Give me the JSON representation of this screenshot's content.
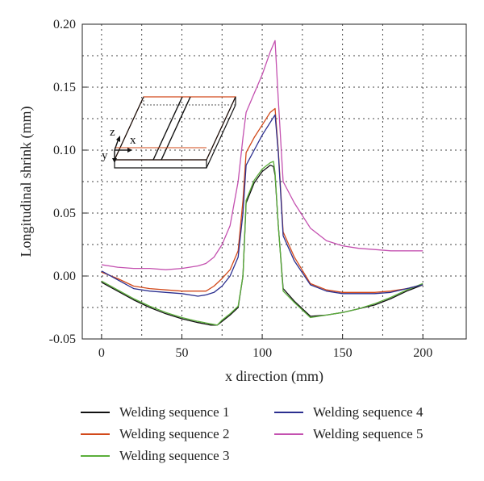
{
  "chart_data": {
    "type": "line",
    "title": "",
    "xlabel": "x direction (mm)",
    "ylabel": "Longitudinal shrink (mm)",
    "xlim": [
      -12,
      227
    ],
    "ylim": [
      -0.05,
      0.2
    ],
    "xticks": [
      0,
      50,
      100,
      150,
      200
    ],
    "yticks": [
      -0.05,
      0.0,
      0.05,
      0.1,
      0.15,
      0.2
    ],
    "xtick_labels": [
      "0",
      "50",
      "100",
      "150",
      "200"
    ],
    "ytick_labels": [
      "-0.05",
      "0.00",
      "0.05",
      "0.10",
      "0.15",
      "0.20"
    ],
    "grid": true,
    "legend_position": "bottom",
    "inset_labels": {
      "z": "z",
      "x": "x",
      "y": "y"
    },
    "series": [
      {
        "name": "Welding sequence 1",
        "color": "#111111",
        "x": [
          0,
          10,
          20,
          30,
          40,
          50,
          60,
          68,
          72,
          75,
          80,
          85,
          88,
          90,
          95,
          100,
          105,
          107,
          108,
          110,
          113,
          120,
          130,
          140,
          150,
          160,
          170,
          180,
          190,
          200
        ],
        "y": [
          -0.005,
          -0.012,
          -0.019,
          -0.025,
          -0.03,
          -0.034,
          -0.037,
          -0.039,
          -0.039,
          -0.036,
          -0.031,
          -0.025,
          0.0,
          0.058,
          0.074,
          0.083,
          0.088,
          0.087,
          0.08,
          0.04,
          -0.01,
          -0.02,
          -0.032,
          -0.031,
          -0.029,
          -0.026,
          -0.023,
          -0.018,
          -0.012,
          -0.007
        ]
      },
      {
        "name": "Welding sequence 2",
        "color": "#d2491a",
        "x": [
          0,
          10,
          20,
          30,
          40,
          50,
          60,
          65,
          70,
          75,
          80,
          85,
          88,
          90,
          95,
          100,
          105,
          108,
          110,
          113,
          120,
          130,
          140,
          150,
          160,
          170,
          180,
          190,
          200
        ],
        "y": [
          0.003,
          -0.002,
          -0.008,
          -0.01,
          -0.011,
          -0.012,
          -0.012,
          -0.012,
          -0.008,
          -0.002,
          0.005,
          0.02,
          0.06,
          0.098,
          0.11,
          0.12,
          0.13,
          0.133,
          0.1,
          0.035,
          0.015,
          -0.006,
          -0.011,
          -0.013,
          -0.013,
          -0.013,
          -0.012,
          -0.01,
          -0.007
        ]
      },
      {
        "name": "Welding sequence 3",
        "color": "#5aae3a",
        "x": [
          0,
          10,
          20,
          30,
          40,
          50,
          60,
          68,
          72,
          75,
          80,
          85,
          88,
          90,
          95,
          100,
          105,
          107,
          108,
          110,
          113,
          120,
          130,
          140,
          150,
          160,
          170,
          180,
          190,
          200
        ],
        "y": [
          -0.004,
          -0.011,
          -0.018,
          -0.024,
          -0.029,
          -0.033,
          -0.036,
          -0.038,
          -0.039,
          -0.035,
          -0.03,
          -0.024,
          0.0,
          0.06,
          0.076,
          0.085,
          0.09,
          0.091,
          0.082,
          0.04,
          -0.012,
          -0.021,
          -0.033,
          -0.031,
          -0.029,
          -0.026,
          -0.022,
          -0.017,
          -0.011,
          -0.006
        ]
      },
      {
        "name": "Welding sequence 4",
        "color": "#2b2f8f",
        "x": [
          0,
          10,
          20,
          30,
          40,
          50,
          60,
          65,
          70,
          75,
          80,
          85,
          88,
          90,
          95,
          100,
          105,
          108,
          110,
          113,
          120,
          130,
          140,
          150,
          160,
          170,
          180,
          190,
          200
        ],
        "y": [
          0.004,
          -0.003,
          -0.01,
          -0.012,
          -0.013,
          -0.014,
          -0.016,
          -0.015,
          -0.013,
          -0.008,
          0.0,
          0.015,
          0.05,
          0.088,
          0.1,
          0.112,
          0.122,
          0.128,
          0.098,
          0.032,
          0.012,
          -0.007,
          -0.012,
          -0.014,
          -0.014,
          -0.014,
          -0.013,
          -0.01,
          -0.007
        ]
      },
      {
        "name": "Welding sequence 5",
        "color": "#c451b0",
        "x": [
          0,
          10,
          20,
          30,
          40,
          50,
          60,
          65,
          70,
          75,
          80,
          85,
          88,
          90,
          95,
          100,
          105,
          108,
          110,
          113,
          120,
          130,
          140,
          150,
          160,
          170,
          180,
          190,
          200
        ],
        "y": [
          0.009,
          0.007,
          0.006,
          0.006,
          0.005,
          0.006,
          0.008,
          0.01,
          0.015,
          0.025,
          0.04,
          0.075,
          0.11,
          0.13,
          0.145,
          0.16,
          0.178,
          0.187,
          0.14,
          0.075,
          0.058,
          0.038,
          0.028,
          0.024,
          0.022,
          0.021,
          0.02,
          0.02,
          0.02
        ]
      }
    ]
  },
  "legend": {
    "items": [
      {
        "label": "Welding sequence 1",
        "color": "#111111"
      },
      {
        "label": "Welding sequence 2",
        "color": "#d2491a"
      },
      {
        "label": "Welding sequence 3",
        "color": "#5aae3a"
      },
      {
        "label": "Welding sequence 4",
        "color": "#2b2f8f"
      },
      {
        "label": "Welding sequence 5",
        "color": "#c451b0"
      }
    ]
  }
}
